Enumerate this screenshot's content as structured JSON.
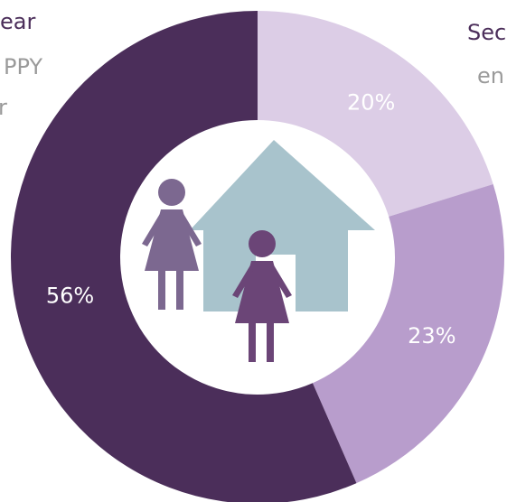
{
  "chart_data": {
    "type": "donut",
    "categories": [
      null,
      null,
      null
    ],
    "values": [
      20,
      23,
      56
    ],
    "value_labels": [
      "20%",
      "23%",
      "56%"
    ],
    "colors": [
      "#dccde6",
      "#b89dcc",
      "#4b2e5a"
    ],
    "annotations": [
      "ear",
      "PPY",
      "r",
      "Sec",
      "en"
    ]
  }
}
